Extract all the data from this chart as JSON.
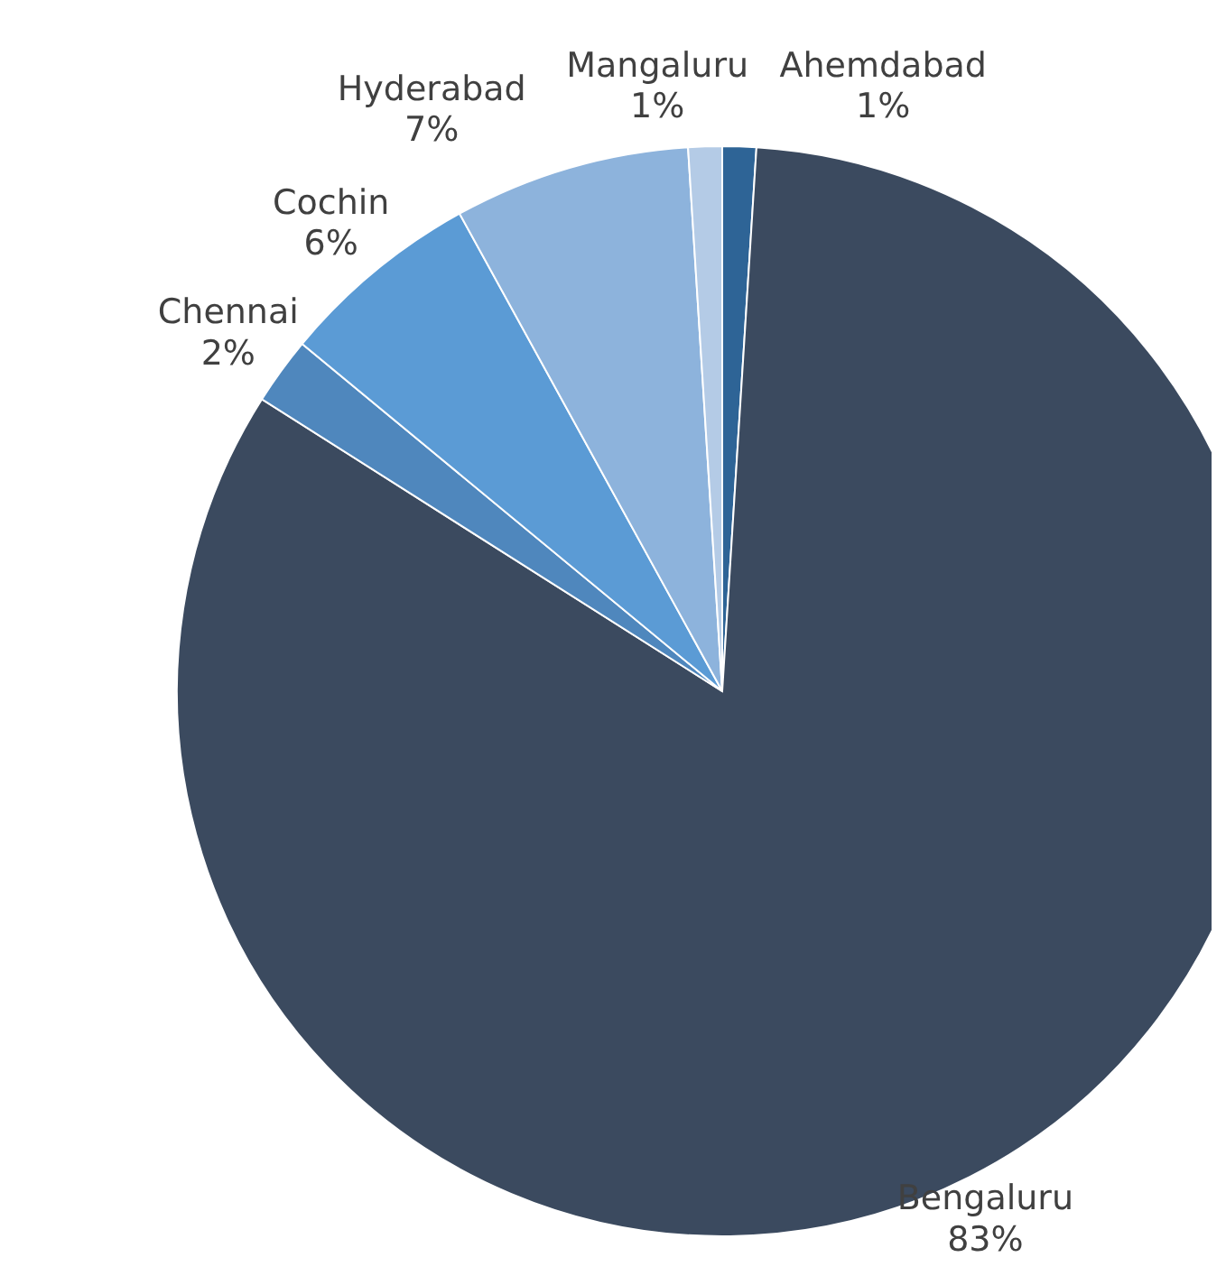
{
  "chart_data": {
    "type": "pie",
    "categories": [
      "Ahemdabad",
      "Bengaluru",
      "Chennai",
      "Cochin",
      "Hyderabad",
      "Mangaluru"
    ],
    "values": [
      1,
      83,
      2,
      6,
      7,
      1
    ],
    "colors": [
      "#2e6496",
      "#3b4a5f",
      "#4f87bd",
      "#5b9bd5",
      "#8db3dc",
      "#b4cbe6"
    ],
    "value_labels": [
      "1%",
      "83%",
      "2%",
      "6%",
      "7%",
      "1%"
    ]
  }
}
